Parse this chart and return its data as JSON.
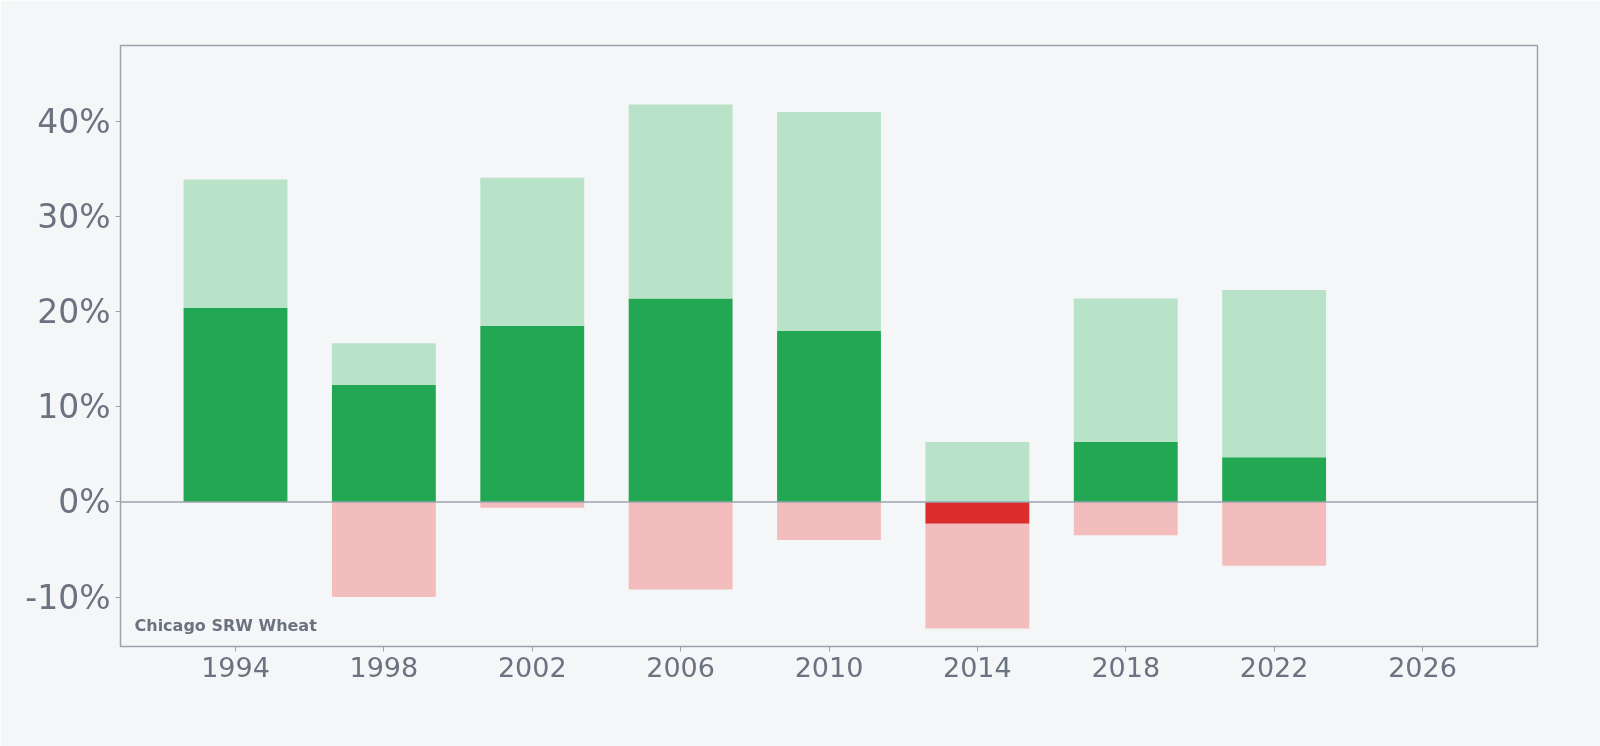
{
  "chart_data": {
    "type": "bar",
    "stacked": true,
    "x": [
      1994,
      1998,
      2002,
      2006,
      2010,
      2014,
      2018,
      2022
    ],
    "series": [
      {
        "colors": [
          "#22a852",
          "#22a852",
          "#22a852",
          "#22a852",
          "#22a852",
          "#dc2d2d",
          "#22a852",
          "#22a852"
        ],
        "values": [
          20.4,
          12.3,
          18.5,
          21.4,
          18.0,
          -2.3,
          6.3,
          4.7
        ]
      },
      {
        "color": "#b8e3c8",
        "values": [
          13.5,
          4.4,
          15.6,
          20.4,
          23.0,
          6.3,
          15.1,
          17.6
        ]
      },
      {
        "color": "#f4bdbd",
        "values": [
          null,
          -10.0,
          -0.6,
          -9.2,
          -4.0,
          -11.0,
          -3.5,
          -6.7
        ]
      }
    ],
    "xlim": [
      1990.9,
      2029.1
    ],
    "xticks": [
      1994,
      1998,
      2002,
      2006,
      2010,
      2014,
      2018,
      2022,
      2026
    ],
    "ylim": [
      -15.2,
      48.0
    ],
    "yticks": [
      {
        "value": -10,
        "label": "-10%"
      },
      {
        "value": 0,
        "label": "0%"
      },
      {
        "value": 10,
        "label": "10%"
      },
      {
        "value": 20,
        "label": "20%"
      },
      {
        "value": 30,
        "label": "30%"
      },
      {
        "value": 40,
        "label": "40%"
      }
    ],
    "grid": false,
    "ref_lines": [
      {
        "axis": "y",
        "value": 0,
        "color": "#9ca3af"
      }
    ],
    "annotations": [
      "Chicago SRW Wheat"
    ]
  }
}
